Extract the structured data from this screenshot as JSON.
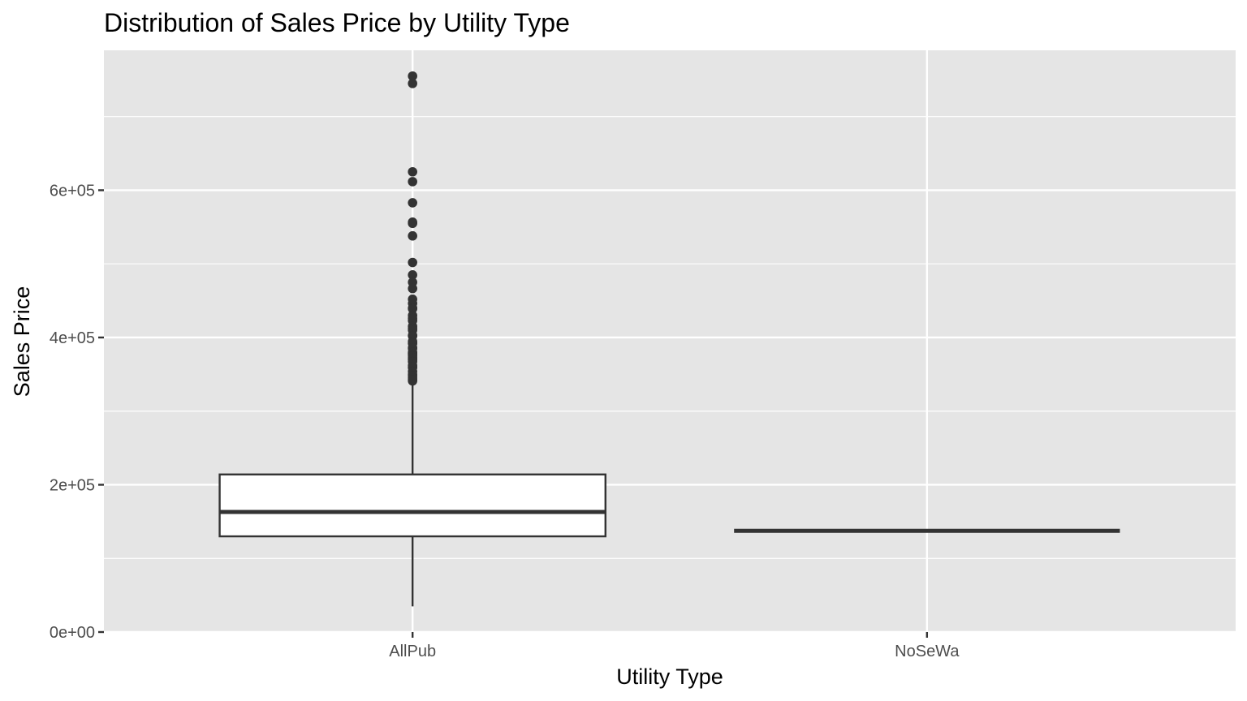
{
  "chart_data": {
    "type": "boxplot",
    "title": "Distribution of Sales Price by Utility Type",
    "xlabel": "Utility Type",
    "ylabel": "Sales Price",
    "categories": [
      "AllPub",
      "NoSeWa"
    ],
    "ylim": [
      0,
      790000
    ],
    "yticks": [
      0,
      200000,
      400000,
      600000
    ],
    "yticks_minor": [
      100000,
      300000,
      500000,
      700000
    ],
    "ytick_labels": [
      "0e+00",
      "2e+05",
      "4e+05",
      "6e+05"
    ],
    "grid": true,
    "legend": "none",
    "colors": {
      "panel": "#e5e5e5",
      "grid": "#ffffff",
      "box_fill": "#ffffff",
      "box_line": "#333333",
      "outlier": "#333333"
    },
    "boxes": [
      {
        "category": "AllPub",
        "whisker_low": 34900,
        "q1": 129950,
        "median": 163000,
        "q3": 214000,
        "whisker_high": 340000,
        "outliers": [
          755000,
          745000,
          625000,
          611657,
          582933,
          556581,
          555000,
          538000,
          501837,
          485000,
          475000,
          466500,
          451950,
          446261,
          440000,
          438780,
          430000,
          426000,
          423000,
          415298,
          412500,
          410000,
          402861,
          402000,
          394617,
          392500,
          392000,
          386250,
          385000,
          380000,
          378500,
          377500,
          377426,
          375000,
          372500,
          370878,
          369900,
          367294,
          361919,
          360000,
          359100,
          354000,
          350000,
          348000,
          345000,
          342643,
          341000
        ]
      },
      {
        "category": "NoSeWa",
        "whisker_low": 137500,
        "q1": 137500,
        "median": 137500,
        "q3": 137500,
        "whisker_high": 137500,
        "outliers": []
      }
    ]
  }
}
